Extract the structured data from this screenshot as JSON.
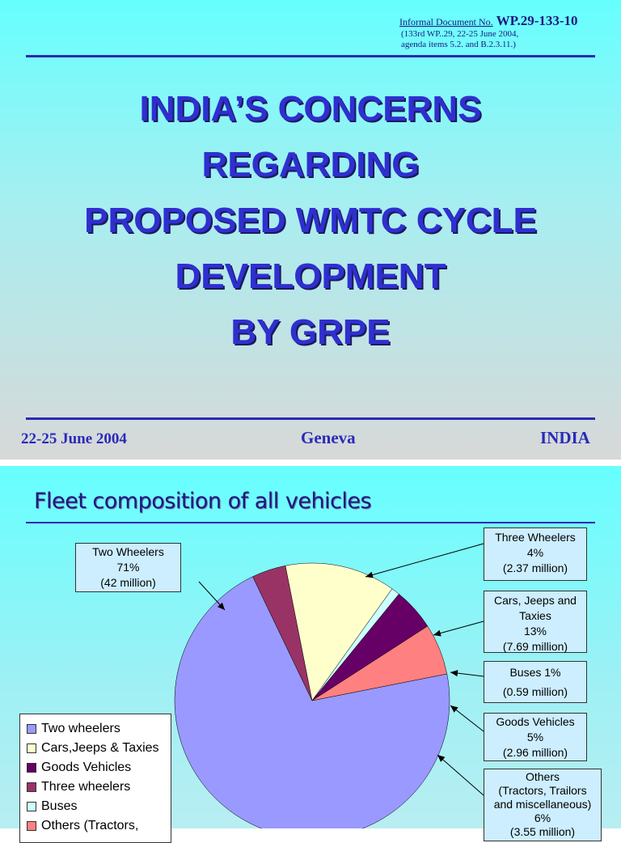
{
  "slide1": {
    "doc_label": "Informal Document No.",
    "doc_number": "WP.29-133-10",
    "doc_sub1": "(133rd WP..29, 22-25 June 2004,",
    "doc_sub2": "agenda items 5.2. and B.2.3.11.)",
    "title_lines": [
      "INDIA’S CONCERNS",
      "REGARDING",
      "PROPOSED WMTC  CYCLE",
      "DEVELOPMENT",
      "BY GRPE"
    ],
    "date": "22-25 June 2004",
    "place": "Geneva",
    "country": "INDIA"
  },
  "slide2": {
    "title": "Fleet composition of all vehicles",
    "labels": {
      "two_wheelers": [
        "Two Wheelers",
        "71%",
        "(42 million)"
      ],
      "three_wheelers": [
        "Three Wheelers",
        "4%",
        "(2.37 million)"
      ],
      "cars": [
        "Cars, Jeeps and",
        "Taxies",
        "13%",
        "(7.69 million)"
      ],
      "buses": [
        "Buses 1%",
        "(0.59 million)"
      ],
      "goods": [
        "Goods Vehicles",
        "5%",
        "(2.96 million)"
      ],
      "others": [
        "Others",
        "(Tractors, Trailors",
        "and miscellaneous)",
        "6%",
        "(3.55 million)"
      ]
    },
    "legend": [
      "Two wheelers",
      "Cars,Jeeps & Taxies",
      "Goods Vehicles",
      "Three wheelers",
      "Buses",
      "Others (Tractors,"
    ]
  },
  "chart_data": {
    "type": "pie",
    "title": "Fleet composition of all vehicles",
    "slices": [
      {
        "name": "Two wheelers",
        "value": 71,
        "color": "#9999ff"
      },
      {
        "name": "Three wheelers",
        "value": 4,
        "color": "#993366"
      },
      {
        "name": "Cars,Jeeps & Taxies",
        "value": 13,
        "color": "#ffffcc"
      },
      {
        "name": "Buses",
        "value": 1,
        "color": "#ccffff"
      },
      {
        "name": "Goods Vehicles",
        "value": 5,
        "color": "#660066"
      },
      {
        "name": "Others",
        "value": 6,
        "color": "#ff8080"
      }
    ],
    "legend_colors": [
      "#9999ff",
      "#ffffcc",
      "#660066",
      "#993366",
      "#ccffff",
      "#ff8080"
    ]
  }
}
